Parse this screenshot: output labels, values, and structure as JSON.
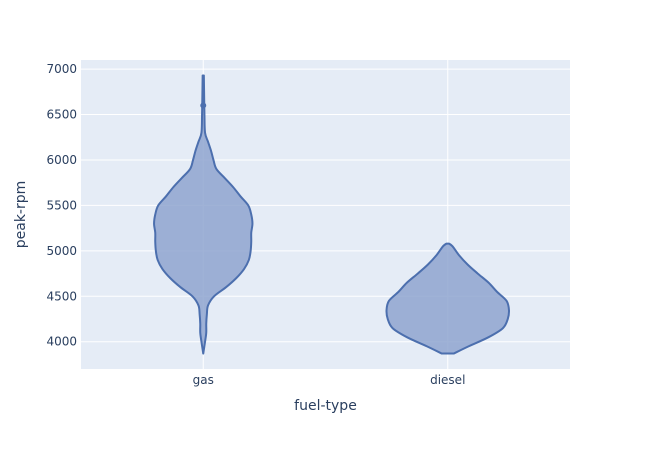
{
  "chart_data": {
    "type": "violin",
    "xlabel": "fuel-type",
    "ylabel": "peak-rpm",
    "ylim": [
      3700,
      7100
    ],
    "yticks": [
      4000,
      4500,
      5000,
      5500,
      6000,
      6500,
      7000
    ],
    "ytick_labels": [
      "4000",
      "4500",
      "5000",
      "5500",
      "6000",
      "6500",
      "7000"
    ],
    "categories": [
      "gas",
      "diesel"
    ],
    "grid": true,
    "colors": {
      "fill": "#8fa5cf",
      "line": "#4c6fae",
      "plot_bg": "#e5ecf6",
      "grid": "#ffffff"
    },
    "series": [
      {
        "category": "gas",
        "min": 3870,
        "max": 6930,
        "outlier_marker": 6600,
        "profile": [
          [
            3870,
            0.0
          ],
          [
            4000,
            0.03
          ],
          [
            4100,
            0.05
          ],
          [
            4200,
            0.05
          ],
          [
            4300,
            0.06
          ],
          [
            4400,
            0.08
          ],
          [
            4500,
            0.18
          ],
          [
            4600,
            0.38
          ],
          [
            4700,
            0.55
          ],
          [
            4800,
            0.68
          ],
          [
            4900,
            0.76
          ],
          [
            5000,
            0.79
          ],
          [
            5100,
            0.8
          ],
          [
            5200,
            0.8
          ],
          [
            5300,
            0.82
          ],
          [
            5400,
            0.8
          ],
          [
            5500,
            0.75
          ],
          [
            5600,
            0.62
          ],
          [
            5700,
            0.5
          ],
          [
            5800,
            0.36
          ],
          [
            5900,
            0.22
          ],
          [
            6000,
            0.17
          ],
          [
            6100,
            0.13
          ],
          [
            6200,
            0.08
          ],
          [
            6300,
            0.03
          ],
          [
            6500,
            0.02
          ],
          [
            6700,
            0.015
          ],
          [
            6930,
            0.01
          ]
        ]
      },
      {
        "category": "diesel",
        "min": 3870,
        "max": 5080,
        "profile": [
          [
            3870,
            0.1
          ],
          [
            3950,
            0.35
          ],
          [
            4050,
            0.68
          ],
          [
            4150,
            0.92
          ],
          [
            4250,
            1.0
          ],
          [
            4350,
            1.02
          ],
          [
            4450,
            0.98
          ],
          [
            4550,
            0.82
          ],
          [
            4650,
            0.68
          ],
          [
            4750,
            0.5
          ],
          [
            4850,
            0.33
          ],
          [
            4950,
            0.19
          ],
          [
            5050,
            0.08
          ],
          [
            5080,
            0.02
          ]
        ]
      }
    ]
  }
}
